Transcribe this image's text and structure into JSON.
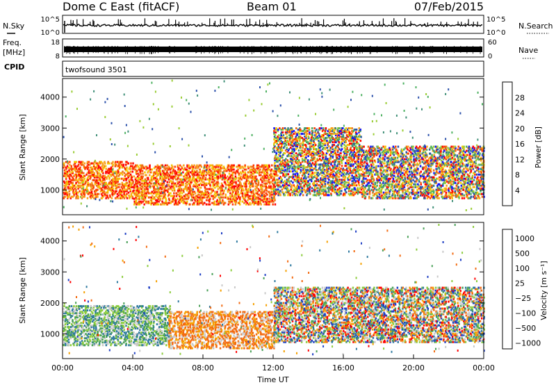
{
  "header": {
    "radar": "Dome C East (fitACF)",
    "beam": "Beam 01",
    "date": "07/Feb/2015"
  },
  "strip_panels": {
    "nsky": {
      "left_label": "N.Sky",
      "left_ticks": [
        "10^5",
        "10^0"
      ],
      "right_label": "N.Search",
      "right_ticks": [
        "10^5",
        "10^0"
      ]
    },
    "freq": {
      "left_label": "Freq.",
      "left_unit": "[MHz]",
      "left_ticks": [
        "18",
        "8"
      ],
      "right_label": "Nave",
      "right_ticks": [
        "60",
        "0"
      ]
    },
    "cpid": {
      "left_label": "CPID",
      "program": "twofsound 3501"
    }
  },
  "colors": {
    "power": [
      "#1010ff",
      "#2a4faa",
      "#3f8f77",
      "#4cb060",
      "#99cc33",
      "#f5c800",
      "#f9a21a",
      "#f07015",
      "#ff3b00",
      "#ff0000"
    ],
    "velocity": [
      "#ff0000",
      "#f36a10",
      "#f5a000",
      "#c8c8c8",
      "#8ccc3c",
      "#4aa058",
      "#2f7aa0",
      "#1f3fc4"
    ]
  },
  "chart_data": [
    {
      "type": "heatmap",
      "name": "Power",
      "x_range_hours": [
        0,
        24
      ],
      "y_range_km": [
        200,
        4600
      ],
      "ylabel": "Slant Range [km]",
      "yticks": [
        1000,
        2000,
        3000,
        4000
      ],
      "colorbar": {
        "label": "Power [dB]",
        "range": [
          0,
          32
        ],
        "ticks": [
          4,
          8,
          12,
          16,
          20,
          24,
          28
        ]
      },
      "bands": [
        {
          "t0": 0,
          "t1": 4,
          "r0": 700,
          "r1": 1900,
          "level": "high"
        },
        {
          "t0": 4,
          "t1": 12,
          "r0": 500,
          "r1": 1800,
          "level": "high"
        },
        {
          "t0": 12,
          "t1": 17,
          "r0": 800,
          "r1": 3000,
          "level": "mixed"
        },
        {
          "t0": 17,
          "t1": 24,
          "r0": 700,
          "r1": 2400,
          "level": "mixed"
        }
      ]
    },
    {
      "type": "heatmap",
      "name": "Velocity",
      "x_range_hours": [
        0,
        24
      ],
      "y_range_km": [
        200,
        4600
      ],
      "ylabel": "Slant Range [km]",
      "xlabel": "Time UT",
      "yticks": [
        1000,
        2000,
        3000,
        4000
      ],
      "xticks": [
        "00:00",
        "04:00",
        "08:00",
        "12:00",
        "16:00",
        "20:00",
        "00:00"
      ],
      "colorbar": {
        "label": "Velocity [m s⁻¹]",
        "ticks": [
          "1000",
          "500",
          "100",
          "25",
          "−25",
          "−100",
          "−500",
          "−1000"
        ]
      },
      "bands": [
        {
          "t0": 0,
          "t1": 6,
          "r0": 600,
          "r1": 1900,
          "level": "towards"
        },
        {
          "t0": 6,
          "t1": 12,
          "r0": 500,
          "r1": 1700,
          "level": "away"
        },
        {
          "t0": 12,
          "t1": 24,
          "r0": 700,
          "r1": 2500,
          "level": "mixed"
        }
      ]
    }
  ]
}
